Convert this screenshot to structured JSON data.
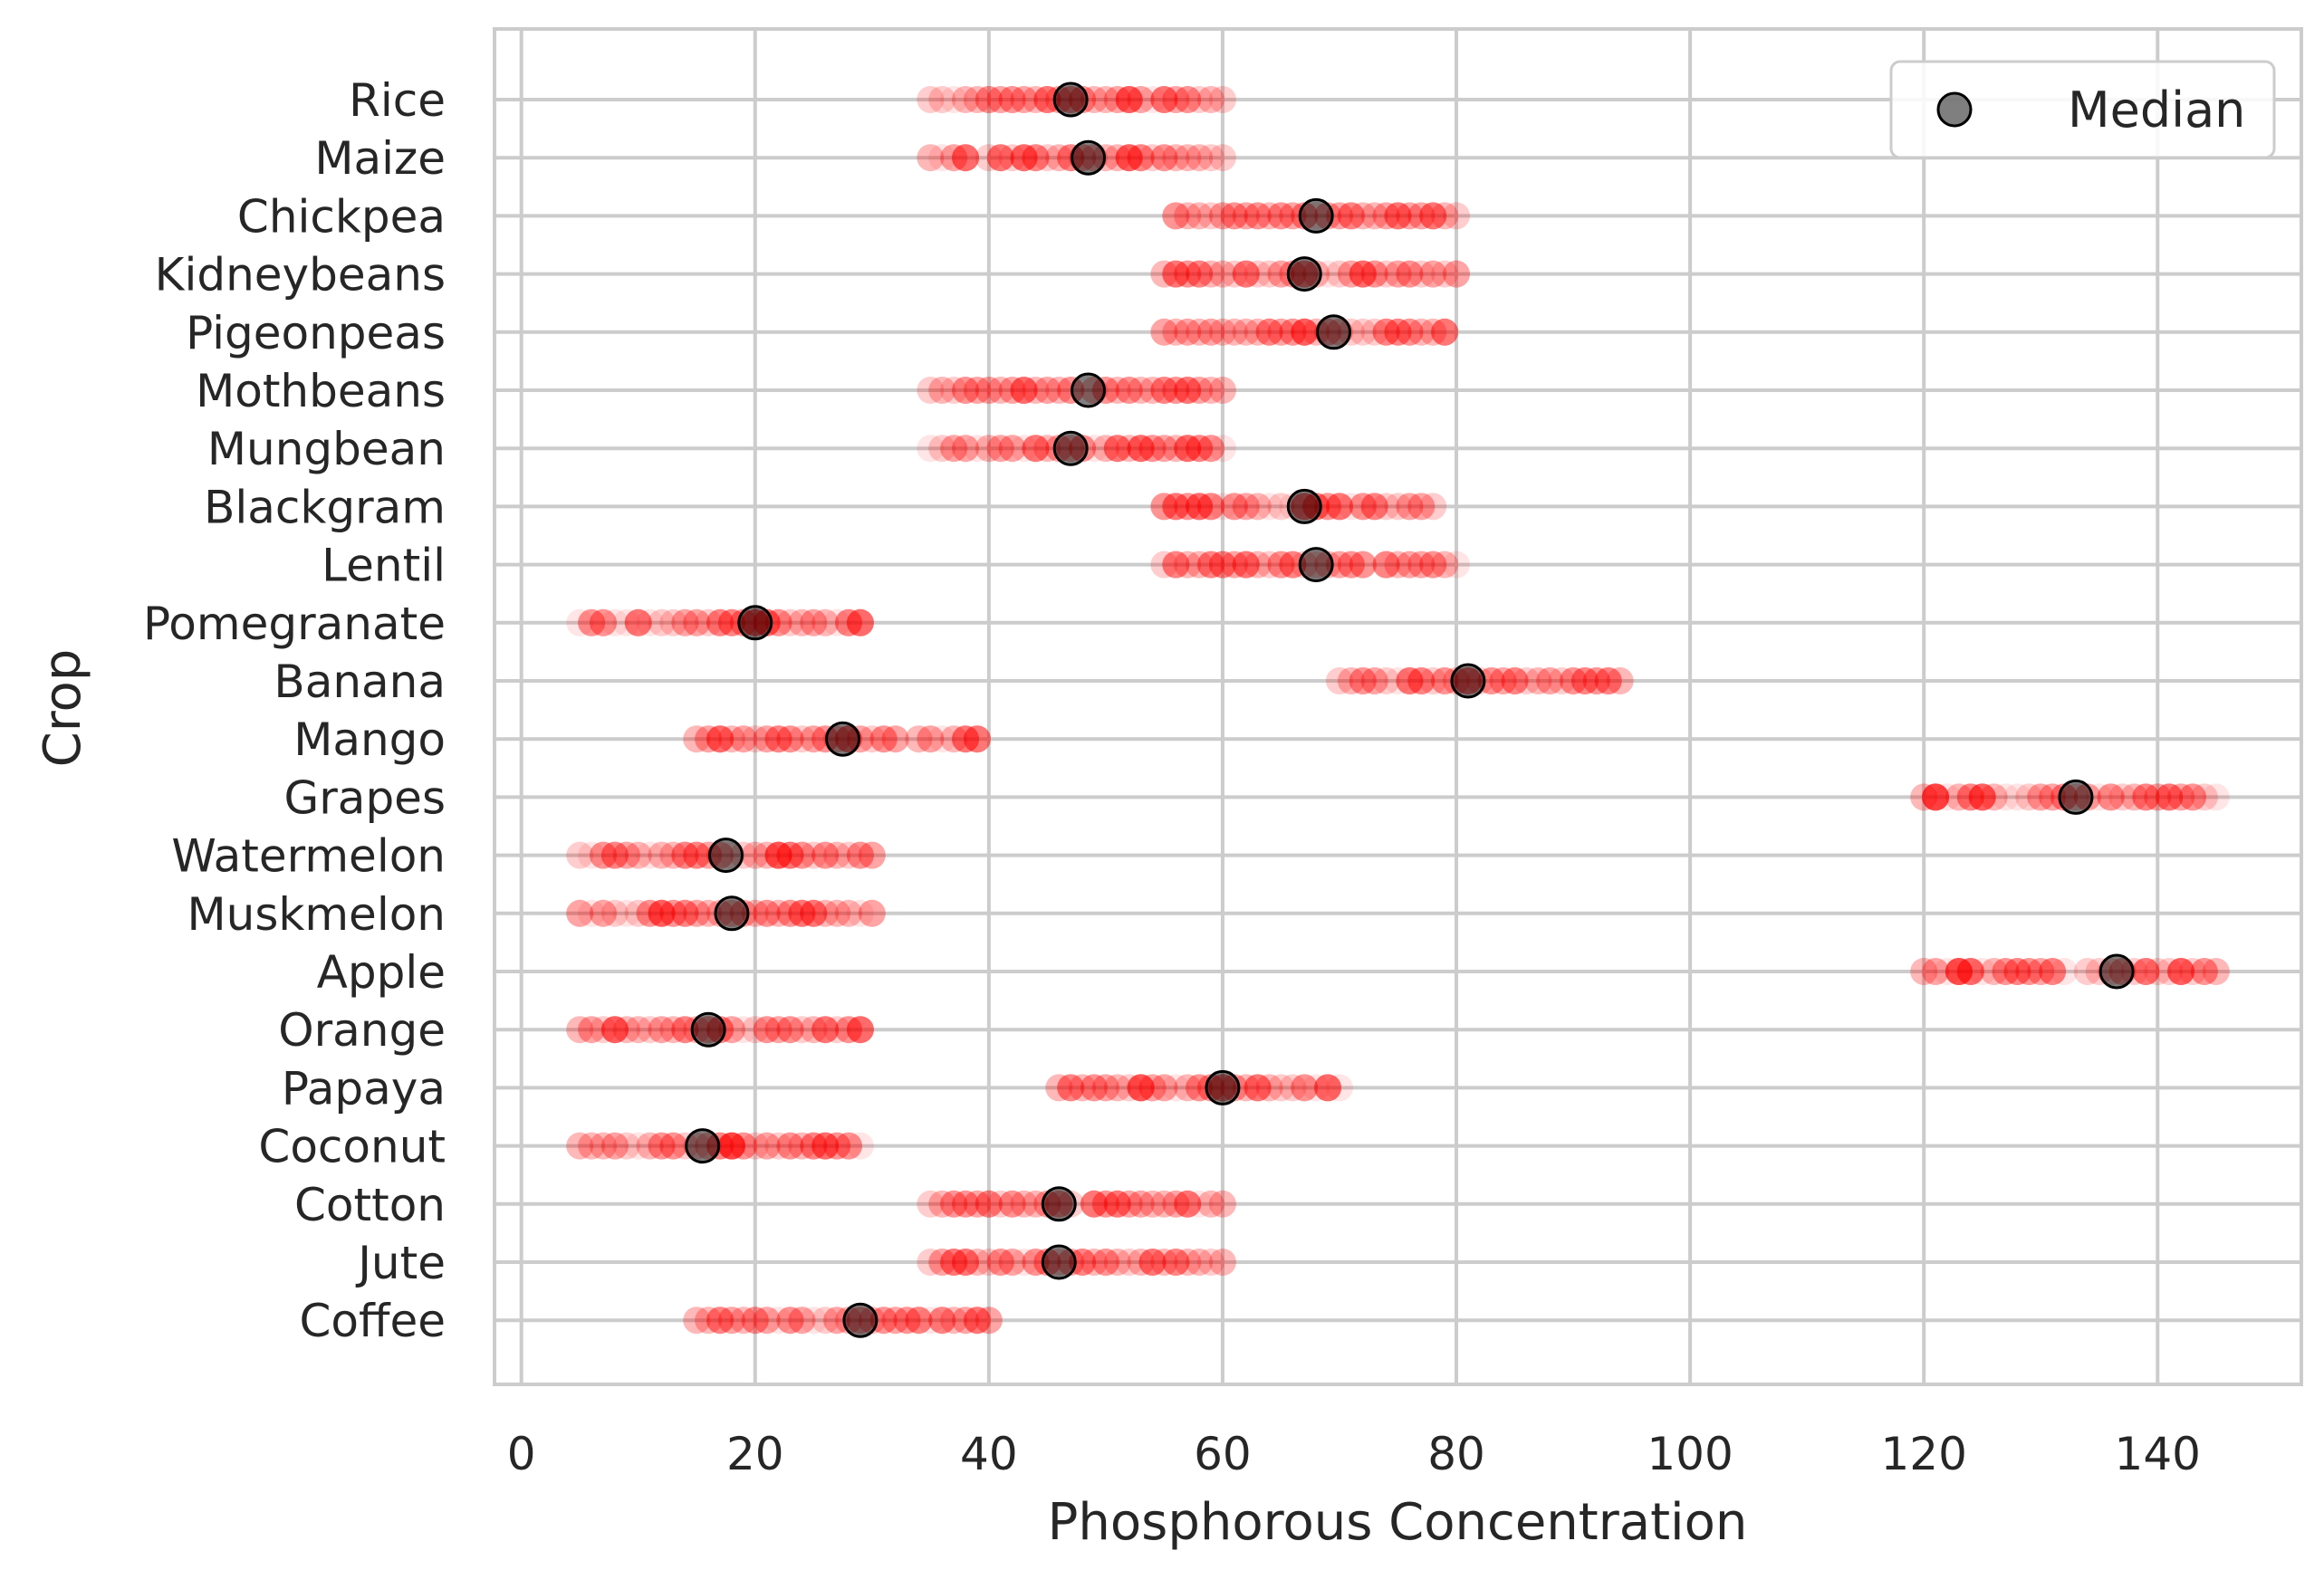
{
  "chart_data": {
    "type": "scatter",
    "orientation": "horizontal",
    "title": "",
    "xlabel": "Phosphorous Concentration",
    "ylabel": "Crop",
    "xlim": [
      -2.3,
      152.3
    ],
    "xticks": [
      0,
      20,
      40,
      60,
      80,
      100,
      120,
      140
    ],
    "grid": true,
    "legend": {
      "placement": "top-right",
      "entries": [
        "Median"
      ]
    },
    "colors": {
      "points": "#ff0000",
      "median": "#000000",
      "grid": "#cccccc",
      "spine": "#cccccc"
    },
    "categories": [
      "Rice",
      "Maize",
      "Chickpea",
      "Kidneybeans",
      "Pigeonpeas",
      "Mothbeans",
      "Mungbean",
      "Blackgram",
      "Lentil",
      "Pomegranate",
      "Banana",
      "Mango",
      "Grapes",
      "Watermelon",
      "Muskmelon",
      "Apple",
      "Orange",
      "Papaya",
      "Coconut",
      "Cotton",
      "Jute",
      "Coffee"
    ],
    "ranges": [
      {
        "crop": "Rice",
        "min": 35,
        "max": 60
      },
      {
        "crop": "Maize",
        "min": 35,
        "max": 60
      },
      {
        "crop": "Chickpea",
        "min": 55,
        "max": 80
      },
      {
        "crop": "Kidneybeans",
        "min": 55,
        "max": 80
      },
      {
        "crop": "Pigeonpeas",
        "min": 55,
        "max": 80
      },
      {
        "crop": "Mothbeans",
        "min": 35,
        "max": 60
      },
      {
        "crop": "Mungbean",
        "min": 35,
        "max": 60
      },
      {
        "crop": "Blackgram",
        "min": 55,
        "max": 80
      },
      {
        "crop": "Lentil",
        "min": 55,
        "max": 80
      },
      {
        "crop": "Pomegranate",
        "min": 5,
        "max": 30
      },
      {
        "crop": "Banana",
        "min": 70,
        "max": 95
      },
      {
        "crop": "Mango",
        "min": 15,
        "max": 40
      },
      {
        "crop": "Grapes",
        "min": 120,
        "max": 145
      },
      {
        "crop": "Watermelon",
        "min": 5,
        "max": 30
      },
      {
        "crop": "Muskmelon",
        "min": 5,
        "max": 30
      },
      {
        "crop": "Apple",
        "min": 120,
        "max": 145
      },
      {
        "crop": "Orange",
        "min": 5,
        "max": 30
      },
      {
        "crop": "Papaya",
        "min": 46,
        "max": 70
      },
      {
        "crop": "Coconut",
        "min": 5,
        "max": 30
      },
      {
        "crop": "Cotton",
        "min": 35,
        "max": 60
      },
      {
        "crop": "Jute",
        "min": 35,
        "max": 60
      },
      {
        "crop": "Coffee",
        "min": 15,
        "max": 40
      }
    ],
    "medians": [
      {
        "crop": "Rice",
        "x": 47
      },
      {
        "crop": "Maize",
        "x": 48.5
      },
      {
        "crop": "Chickpea",
        "x": 68
      },
      {
        "crop": "Kidneybeans",
        "x": 67
      },
      {
        "crop": "Pigeonpeas",
        "x": 69.5
      },
      {
        "crop": "Mothbeans",
        "x": 48.5
      },
      {
        "crop": "Mungbean",
        "x": 47
      },
      {
        "crop": "Blackgram",
        "x": 67
      },
      {
        "crop": "Lentil",
        "x": 68
      },
      {
        "crop": "Pomegranate",
        "x": 20
      },
      {
        "crop": "Banana",
        "x": 81
      },
      {
        "crop": "Mango",
        "x": 27.5
      },
      {
        "crop": "Grapes",
        "x": 133
      },
      {
        "crop": "Watermelon",
        "x": 17.5
      },
      {
        "crop": "Muskmelon",
        "x": 18
      },
      {
        "crop": "Apple",
        "x": 136.5
      },
      {
        "crop": "Orange",
        "x": 16
      },
      {
        "crop": "Papaya",
        "x": 60
      },
      {
        "crop": "Coconut",
        "x": 15.5
      },
      {
        "crop": "Cotton",
        "x": 46
      },
      {
        "crop": "Jute",
        "x": 46
      },
      {
        "crop": "Coffee",
        "x": 29
      }
    ]
  }
}
